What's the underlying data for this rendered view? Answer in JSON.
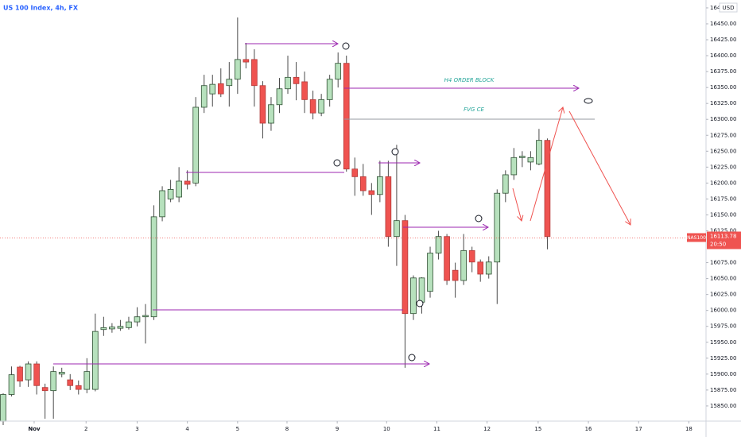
{
  "chart_data": {
    "type": "candlestick",
    "title": "US 100 Index, 4h, FX",
    "currency": "USD",
    "symbol": "NAS100",
    "last_price": 16113.78,
    "countdown": "20:50",
    "annotations": [
      "H4 ORDER BLOCK",
      "FVG CE"
    ],
    "open": [
      15826,
      15868,
      15911,
      15891,
      15916,
      15879,
      15874,
      15900,
      15891,
      15882,
      15876,
      15876,
      15970,
      15971,
      15972,
      15973,
      15982,
      15990,
      15990,
      16147,
      16175,
      16178,
      16203,
      16200,
      16319,
      16340,
      16356,
      16353,
      16363,
      16394,
      16394,
      16353,
      16294,
      16323,
      16348,
      16366,
      16359,
      16331,
      16310,
      16331,
      16363,
      16388,
      16222,
      16210,
      16188,
      16182,
      16210,
      16116,
      16141,
      15995,
      16013,
      16030,
      16090,
      16116,
      16063,
      16047,
      16094,
      16076,
      16057,
      16076,
      16184,
      16213,
      16240,
      16233,
      16230,
      16267
    ],
    "high": [
      15870,
      15912,
      15913,
      15920,
      15920,
      15885,
      15912,
      15910,
      15900,
      15890,
      15925,
      15995,
      15990,
      15980,
      15985,
      15990,
      16005,
      16010,
      16165,
      16195,
      16205,
      16225,
      16220,
      16335,
      16370,
      16370,
      16380,
      16390,
      16460,
      16420,
      16410,
      16360,
      16335,
      16365,
      16400,
      16390,
      16375,
      16345,
      16340,
      16370,
      16405,
      16400,
      16240,
      16230,
      16200,
      16235,
      16235,
      16260,
      16150,
      16055,
      16052,
      16100,
      16125,
      16120,
      16075,
      16120,
      16100,
      16080,
      16085,
      16190,
      16220,
      16255,
      16250,
      16250,
      16285,
      16270
    ],
    "low": [
      15820,
      15865,
      15880,
      15880,
      15868,
      15830,
      15830,
      15895,
      15875,
      15868,
      15870,
      15873,
      15960,
      15965,
      15968,
      15970,
      15975,
      15948,
      15985,
      16140,
      16170,
      16170,
      16190,
      16195,
      16310,
      16320,
      16335,
      16320,
      16340,
      16380,
      16320,
      16270,
      16282,
      16310,
      16340,
      16330,
      16310,
      16300,
      16305,
      16320,
      16350,
      16218,
      16180,
      16180,
      16150,
      16170,
      16100,
      16070,
      15910,
      15985,
      15995,
      16020,
      16080,
      16040,
      16020,
      16040,
      16060,
      16045,
      16050,
      16010,
      16170,
      16205,
      16225,
      16220,
      16228,
      16096
    ],
    "close": [
      15868,
      15899,
      15889,
      15916,
      15882,
      15874,
      15904,
      15903,
      15882,
      15876,
      15904,
      15967,
      15973,
      15974,
      15975,
      15982,
      15990,
      15992,
      16147,
      16188,
      16190,
      16203,
      16198,
      16319,
      16353,
      16355,
      16340,
      16363,
      16394,
      16390,
      16353,
      16294,
      16323,
      16348,
      16366,
      16356,
      16331,
      16310,
      16331,
      16363,
      16388,
      16222,
      16210,
      16188,
      16182,
      16210,
      16116,
      16141,
      15995,
      16051,
      16051,
      16090,
      16116,
      16047,
      16047,
      16094,
      16076,
      16057,
      16076,
      16184,
      16213,
      16240,
      16242,
      16240,
      16267,
      16116
    ],
    "up_color": "#b7e1bd",
    "down_color": "#ef5350",
    "xlim": [
      -0.38,
      83.95
    ],
    "xticks": [
      {
        "value": 3.7,
        "label": "Nov"
      },
      {
        "value": 9.9,
        "label": "2"
      },
      {
        "value": 16,
        "label": "3"
      },
      {
        "value": 22,
        "label": "4"
      },
      {
        "value": 28,
        "label": "5"
      },
      {
        "value": 33.9,
        "label": "8"
      },
      {
        "value": 39.9,
        "label": "9"
      },
      {
        "value": 45.8,
        "label": "10"
      },
      {
        "value": 51.8,
        "label": "11"
      },
      {
        "value": 57.8,
        "label": "12"
      },
      {
        "value": 63.9,
        "label": "15"
      },
      {
        "value": 69.9,
        "label": "16"
      },
      {
        "value": 75.9,
        "label": "17"
      },
      {
        "value": 81.9,
        "label": "18"
      }
    ],
    "ylim": [
      15826.2,
      16487.4
    ],
    "yticks": [
      {
        "value": 15850,
        "label": "15850.00"
      },
      {
        "value": 15875,
        "label": "15875.00"
      },
      {
        "value": 15900,
        "label": "15900.00"
      },
      {
        "value": 15925,
        "label": "15925.00"
      },
      {
        "value": 15950,
        "label": "15950.00"
      },
      {
        "value": 15975,
        "label": "15975.00"
      },
      {
        "value": 16000,
        "label": "16000.00"
      },
      {
        "value": 16025,
        "label": "16025.00"
      },
      {
        "value": 16050,
        "label": "16050.00"
      },
      {
        "value": 16075,
        "label": "16075.00"
      },
      {
        "value": 16125,
        "label": "16125.00"
      },
      {
        "value": 16150,
        "label": "16150.00"
      },
      {
        "value": 16175,
        "label": "16175.00"
      },
      {
        "value": 16200,
        "label": "16200.00"
      },
      {
        "value": 16225,
        "label": "16225.00"
      },
      {
        "value": 16250,
        "label": "16250.00"
      },
      {
        "value": 16275,
        "label": "16275.00"
      },
      {
        "value": 16300,
        "label": "16300.00"
      },
      {
        "value": 16325,
        "label": "16325.00"
      },
      {
        "value": 16350,
        "label": "16350.00"
      },
      {
        "value": 16375,
        "label": "16375.00"
      },
      {
        "value": 16400,
        "label": "16400.00"
      },
      {
        "value": 16425,
        "label": "16425.00"
      },
      {
        "value": 16450,
        "label": "16450.00"
      },
      {
        "value": 16475,
        "label": "16475.00"
      }
    ]
  }
}
